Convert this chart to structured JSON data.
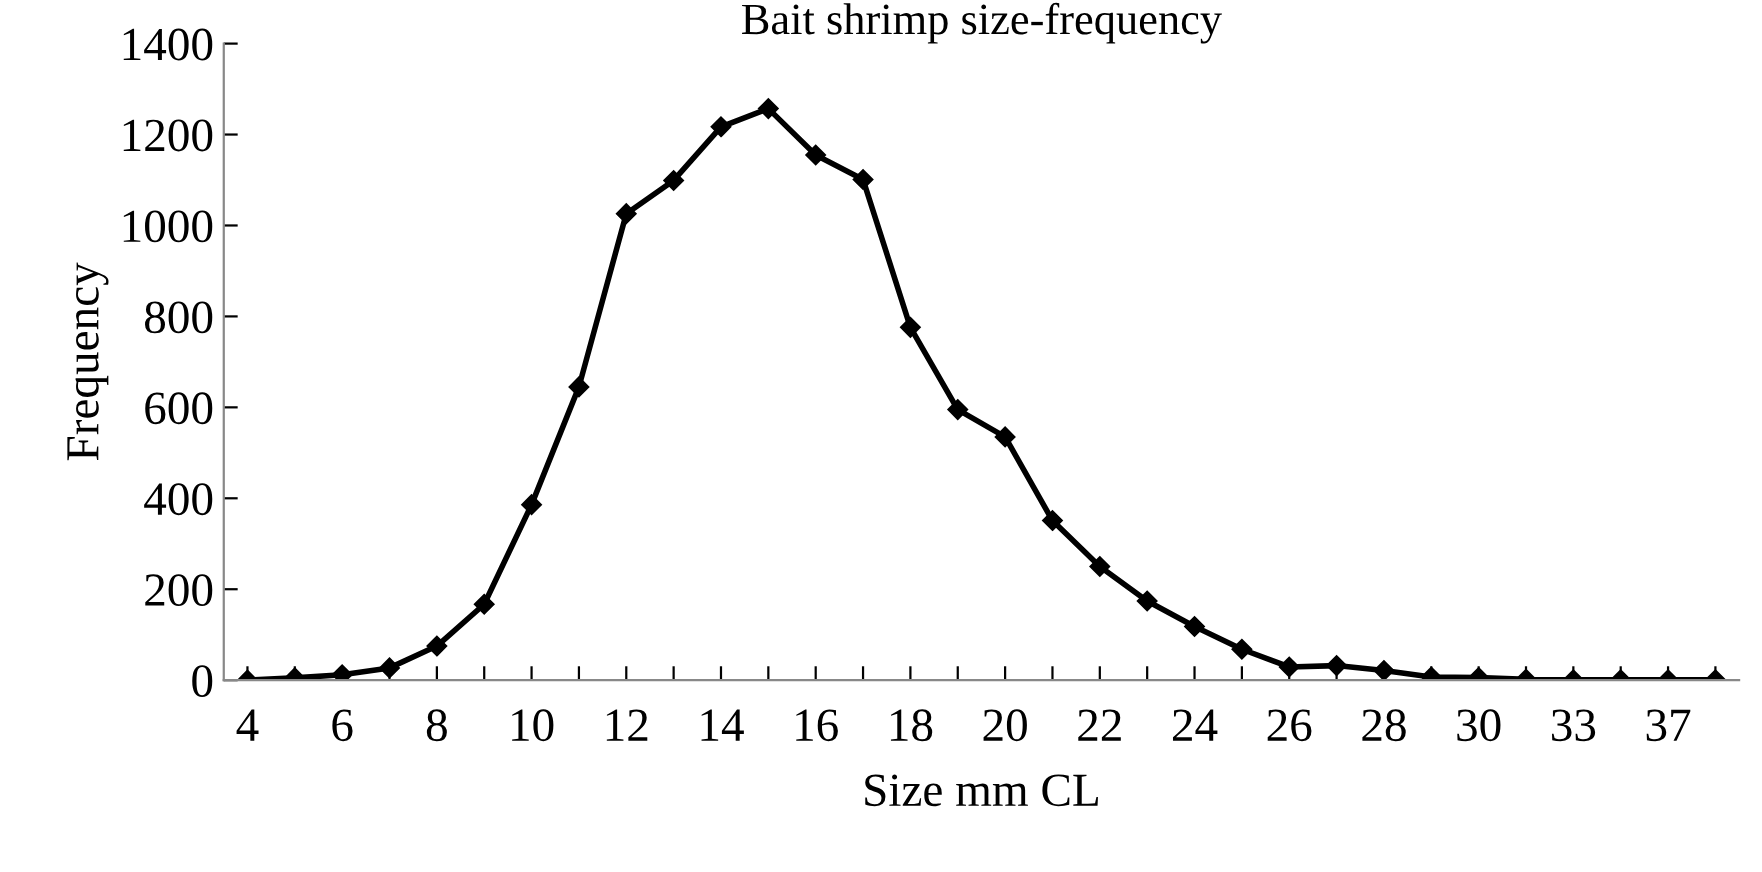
{
  "chart_data": {
    "type": "line",
    "title": "Bait shrimp size-frequency",
    "xlabel": "Size mm CL",
    "ylabel": "Frequency",
    "categories": [
      "4",
      null,
      "6",
      null,
      "8",
      null,
      "10",
      null,
      "12",
      null,
      "14",
      null,
      "16",
      null,
      "18",
      null,
      "20",
      null,
      "22",
      null,
      "24",
      null,
      "26",
      null,
      "28",
      null,
      "30",
      null,
      "33",
      null,
      "37",
      null
    ],
    "series": [
      {
        "color": "#000000",
        "values": [
          0,
          5,
          12,
          27,
          75,
          167,
          386,
          645,
          1026,
          1099,
          1217,
          1257,
          1155,
          1101,
          776,
          595,
          535,
          351,
          250,
          174,
          118,
          68,
          29,
          32,
          21,
          7,
          6,
          2,
          1,
          1,
          1,
          1
        ]
      }
    ],
    "ylim": [
      0,
      1400
    ],
    "yticks": [
      0,
      200,
      400,
      600,
      800,
      1000,
      1200,
      1400
    ],
    "grid": false,
    "legend": false,
    "marker": "diamond",
    "line_style": "solid"
  }
}
